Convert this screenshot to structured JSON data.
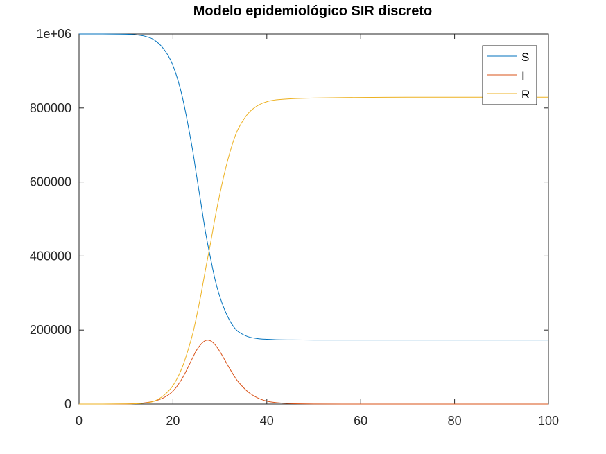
{
  "chart_data": {
    "type": "line",
    "title": "Modelo epidemiológico SIR discreto",
    "xlabel": "",
    "ylabel": "",
    "xlim": [
      0,
      100
    ],
    "ylim": [
      0,
      1000000
    ],
    "grid": false,
    "legend_position": "top-right",
    "x_ticks": [
      0,
      20,
      40,
      60,
      80,
      100
    ],
    "x_tick_labels": [
      "0",
      "20",
      "40",
      "60",
      "80",
      "100"
    ],
    "y_ticks": [
      0,
      200000,
      400000,
      600000,
      800000,
      1000000
    ],
    "y_tick_labels": [
      "0",
      "200000",
      "400000",
      "600000",
      "800000",
      "1e+06"
    ],
    "x": [
      0,
      5,
      10,
      12,
      14,
      16,
      18,
      20,
      22,
      24,
      25,
      26,
      27,
      28,
      29,
      30,
      31,
      32,
      33,
      34,
      36,
      38,
      40,
      42,
      45,
      50,
      60,
      70,
      80,
      90,
      100
    ],
    "series": [
      {
        "name": "S",
        "color": "#0072bd",
        "values": [
          1000000,
          999950,
          999300,
          997800,
          994000,
          984000,
          960000,
          915000,
          830000,
          700000,
          620000,
          540000,
          460000,
          395000,
          335000,
          290000,
          255000,
          228000,
          208000,
          195000,
          182000,
          177000,
          175000,
          174000,
          173500,
          173000,
          173000,
          173000,
          173000,
          173000,
          173000
        ]
      },
      {
        "name": "I",
        "color": "#d95319",
        "values": [
          0,
          0,
          300,
          1200,
          3500,
          8000,
          17000,
          35000,
          70000,
          120000,
          145000,
          162000,
          172000,
          171000,
          160000,
          142000,
          120000,
          98000,
          77000,
          59000,
          33000,
          17000,
          8000,
          4000,
          1300,
          200,
          0,
          0,
          0,
          0,
          0
        ]
      },
      {
        "name": "R",
        "color": "#edb120",
        "values": [
          0,
          50,
          400,
          1000,
          2500,
          8000,
          23000,
          50000,
          100000,
          180000,
          235000,
          298000,
          368000,
          434000,
          505000,
          568000,
          625000,
          674000,
          715000,
          746000,
          785000,
          806000,
          817000,
          822000,
          825000,
          827000,
          828500,
          829000,
          829000,
          829000,
          829000
        ]
      }
    ]
  },
  "colors": {
    "S": "#0072bd",
    "I": "#d95319",
    "R": "#edb120",
    "axes": "#262626"
  }
}
